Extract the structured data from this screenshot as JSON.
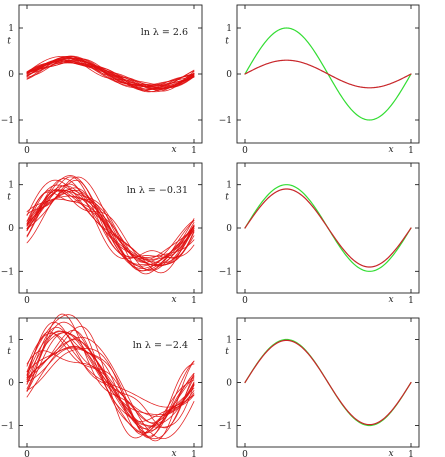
{
  "colors": {
    "samples": "#e01010",
    "mean": "#c8262a",
    "truth": "#33dd33",
    "axes": "#222222"
  },
  "chart_data": [
    {
      "type": "line",
      "xlabel": "x",
      "ylabel": "t",
      "annotation": "ln λ = 2.6",
      "xlim": [
        0,
        1
      ],
      "ylim": [
        -1.5,
        1.5
      ],
      "xticks": [
        "0",
        "1"
      ],
      "yticks": [
        "1",
        "0",
        "−1"
      ],
      "series": [
        {
          "kind": "samples",
          "count": 20,
          "amplitude": 0.3,
          "spread": 0.06
        }
      ]
    },
    {
      "type": "line",
      "xlabel": "x",
      "ylabel": "t",
      "xlim": [
        0,
        1
      ],
      "ylim": [
        -1.5,
        1.5
      ],
      "xticks": [
        "0",
        "1"
      ],
      "yticks": [
        "1",
        "0",
        "−1"
      ],
      "series": [
        {
          "kind": "truth",
          "amplitude": 1.0
        },
        {
          "kind": "mean",
          "amplitude": 0.3
        }
      ]
    },
    {
      "type": "line",
      "xlabel": "x",
      "ylabel": "t",
      "annotation": "ln λ = −0.31",
      "xlim": [
        0,
        1
      ],
      "ylim": [
        -1.5,
        1.5
      ],
      "xticks": [
        "0",
        "1"
      ],
      "yticks": [
        "1",
        "0",
        "−1"
      ],
      "series": [
        {
          "kind": "samples",
          "count": 20,
          "amplitude": 0.88,
          "spread": 0.18
        }
      ]
    },
    {
      "type": "line",
      "xlabel": "x",
      "ylabel": "t",
      "xlim": [
        0,
        1
      ],
      "ylim": [
        -1.5,
        1.5
      ],
      "xticks": [
        "0",
        "1"
      ],
      "yticks": [
        "1",
        "0",
        "−1"
      ],
      "series": [
        {
          "kind": "truth",
          "amplitude": 1.0
        },
        {
          "kind": "mean",
          "amplitude": 0.9
        }
      ]
    },
    {
      "type": "line",
      "xlabel": "x",
      "ylabel": "t",
      "annotation": "ln λ = −2.4",
      "xlim": [
        0,
        1
      ],
      "ylim": [
        -1.5,
        1.5
      ],
      "xticks": [
        "0",
        "1"
      ],
      "yticks": [
        "1",
        "0",
        "−1"
      ],
      "series": [
        {
          "kind": "samples",
          "count": 20,
          "amplitude": 0.98,
          "spread": 0.3
        }
      ]
    },
    {
      "type": "line",
      "xlabel": "x",
      "ylabel": "t",
      "xlim": [
        0,
        1
      ],
      "ylim": [
        -1.5,
        1.5
      ],
      "xticks": [
        "0",
        "1"
      ],
      "yticks": [
        "1",
        "0",
        "−1"
      ],
      "series": [
        {
          "kind": "truth",
          "amplitude": 1.0
        },
        {
          "kind": "mean",
          "amplitude": 0.98
        }
      ]
    }
  ]
}
